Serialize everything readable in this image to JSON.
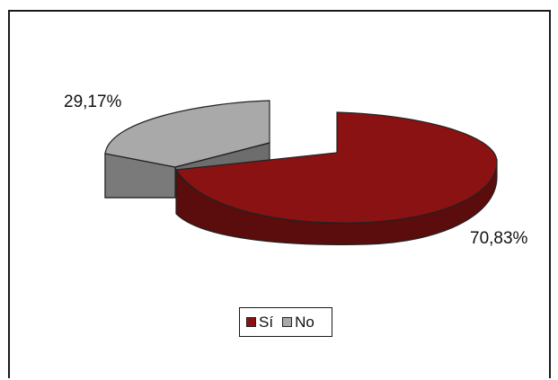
{
  "chart_data": {
    "type": "pie",
    "title": "",
    "categories": [
      "Sí",
      "No"
    ],
    "values": [
      70.83,
      29.17
    ],
    "data_labels": [
      "70,83%",
      "29,17%"
    ],
    "colors": [
      "#8b1212",
      "#a9a9a9"
    ],
    "legend_placement": "bottom-center"
  },
  "legend": {
    "items": [
      {
        "label": "Sí",
        "color": "#8b1212"
      },
      {
        "label": "No",
        "color": "#a9a9a9"
      }
    ]
  }
}
